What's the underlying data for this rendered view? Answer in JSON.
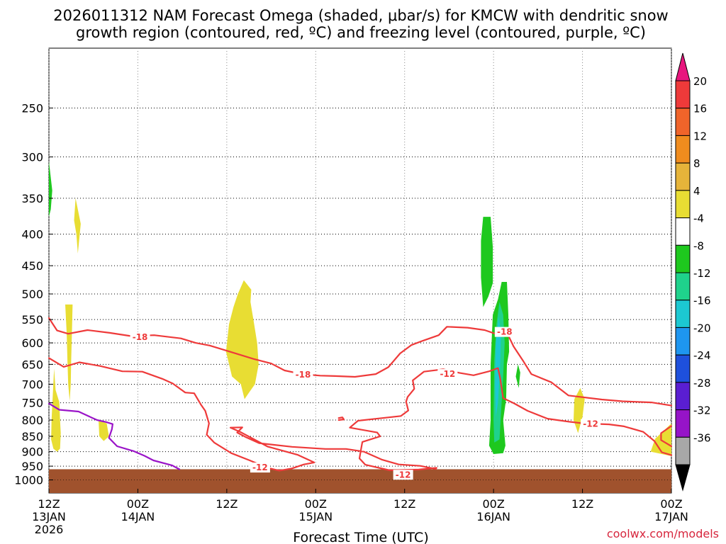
{
  "chart_data": {
    "type": "time-height cross section",
    "title_line1": "2026011312 NAM Forecast Omega (shaded, μbar/s) for KMCW with dendritic snow",
    "title_line2": "growth region (contoured, red, ºC) and freezing level (contoured, purple, ºC)",
    "xlabel": "Forecast Time (UTC)",
    "credit": "coolwx.com/models",
    "y_levels_hpa": [
      250,
      300,
      350,
      400,
      450,
      500,
      550,
      600,
      650,
      700,
      750,
      800,
      850,
      900,
      950,
      1000
    ],
    "y_range_hpa": [
      200,
      1050
    ],
    "x_range_hours": [
      0,
      84
    ],
    "x_ticks": [
      {
        "hour": 0,
        "line1": "12Z",
        "line2": "13JAN",
        "line3": "2026"
      },
      {
        "hour": 12,
        "line1": "00Z",
        "line2": "14JAN",
        "line3": ""
      },
      {
        "hour": 24,
        "line1": "12Z",
        "line2": "",
        "line3": ""
      },
      {
        "hour": 36,
        "line1": "00Z",
        "line2": "15JAN",
        "line3": ""
      },
      {
        "hour": 48,
        "line1": "12Z",
        "line2": "",
        "line3": ""
      },
      {
        "hour": 60,
        "line1": "00Z",
        "line2": "16JAN",
        "line3": ""
      },
      {
        "hour": 72,
        "line1": "12Z",
        "line2": "",
        "line3": ""
      },
      {
        "hour": 84,
        "line1": "00Z",
        "line2": "17JAN",
        "line3": ""
      }
    ],
    "colorbar": {
      "labels": [
        "20",
        "16",
        "12",
        "8",
        "4",
        "-4",
        "-8",
        "-12",
        "-16",
        "-20",
        "-24",
        "-28",
        "-32",
        "-36"
      ],
      "colors": [
        "#e8177e",
        "#ee3a3a",
        "#f0642a",
        "#f08c1e",
        "#e6b43a",
        "#e8dd33",
        "#ffffff",
        "#1ec81e",
        "#1fd28c",
        "#1cc8d2",
        "#1e96f0",
        "#1e50dc",
        "#5a1ed2",
        "#9614c8",
        "#a8a8a8",
        "#000000"
      ]
    },
    "contour_labels": [
      {
        "text": "-18",
        "hour": 12.3,
        "hpa": 587
      },
      {
        "text": "-18",
        "hour": 34.3,
        "hpa": 676
      },
      {
        "text": "-12",
        "hour": 28.5,
        "hpa": 955
      },
      {
        "text": "-12",
        "hour": 53.8,
        "hpa": 674
      },
      {
        "text": "-12",
        "hour": 47.8,
        "hpa": 981
      },
      {
        "text": "-18",
        "hour": 61.5,
        "hpa": 576
      },
      {
        "text": "-12",
        "hour": 73.1,
        "hpa": 812
      }
    ],
    "omega_areas": [
      {
        "color": "#e8dd33",
        "pts": [
          [
            0.7,
            660
          ],
          [
            0.9,
            715
          ],
          [
            1.4,
            748
          ],
          [
            1.5,
            800
          ],
          [
            1.6,
            840
          ],
          [
            1.5,
            890
          ],
          [
            1.1,
            900
          ],
          [
            0.6,
            890
          ],
          [
            0.3,
            860
          ],
          [
            0.35,
            800
          ]
        ]
      },
      {
        "color": "#e8dd33",
        "pts": [
          [
            3.6,
            350
          ],
          [
            4.3,
            385
          ],
          [
            3.9,
            430
          ],
          [
            3.7,
            400
          ],
          [
            3.4,
            380
          ]
        ]
      },
      {
        "color": "#e8dd33",
        "pts": [
          [
            2.2,
            520
          ],
          [
            3.2,
            520
          ],
          [
            3.1,
            580
          ],
          [
            3.0,
            640
          ],
          [
            2.95,
            700
          ],
          [
            2.8,
            745
          ],
          [
            2.6,
            700
          ],
          [
            2.5,
            640
          ],
          [
            2.4,
            580
          ]
        ]
      },
      {
        "color": "#e8dd33",
        "pts": [
          [
            6.7,
            800
          ],
          [
            7.8,
            810
          ],
          [
            8.1,
            850
          ],
          [
            7.4,
            865
          ],
          [
            6.8,
            850
          ]
        ]
      },
      {
        "color": "#e8dd33",
        "pts": [
          [
            26.3,
            475
          ],
          [
            27.3,
            492
          ],
          [
            27.2,
            515
          ],
          [
            27.7,
            560
          ],
          [
            28.1,
            600
          ],
          [
            28.3,
            650
          ],
          [
            27.8,
            700
          ],
          [
            26.9,
            725
          ],
          [
            26.4,
            740
          ],
          [
            25.9,
            700
          ],
          [
            24.7,
            680
          ],
          [
            23.9,
            620
          ],
          [
            24.3,
            560
          ],
          [
            24.9,
            525
          ],
          [
            25.5,
            500
          ]
        ]
      },
      {
        "color": "#e8dd33",
        "pts": [
          [
            71.7,
            710
          ],
          [
            72.3,
            740
          ],
          [
            72.0,
            790
          ],
          [
            71.4,
            840
          ],
          [
            70.8,
            800
          ],
          [
            70.9,
            740
          ]
        ]
      },
      {
        "color": "#e8dd33",
        "pts": [
          [
            84,
            810
          ],
          [
            84,
            915
          ],
          [
            81.2,
            900
          ],
          [
            81.8,
            858
          ]
        ]
      },
      {
        "color": "#1ec81e",
        "pts": [
          [
            0,
            305
          ],
          [
            0.45,
            340
          ],
          [
            0.25,
            365
          ],
          [
            0,
            375
          ]
        ]
      },
      {
        "color": "#1ec81e",
        "pts": [
          [
            58.6,
            375
          ],
          [
            59.6,
            375
          ],
          [
            59.9,
            420
          ],
          [
            59.9,
            480
          ],
          [
            59.3,
            505
          ],
          [
            58.6,
            525
          ],
          [
            58.3,
            470
          ],
          [
            58.3,
            410
          ]
        ]
      },
      {
        "color": "#1ec81e",
        "pts": [
          [
            61.1,
            478
          ],
          [
            61.8,
            478
          ],
          [
            62.0,
            540
          ],
          [
            62.1,
            620
          ],
          [
            61.8,
            650
          ],
          [
            61.7,
            740
          ],
          [
            61.3,
            800
          ],
          [
            61.6,
            880
          ],
          [
            61.3,
            905
          ],
          [
            60.0,
            908
          ],
          [
            59.4,
            880
          ],
          [
            59.6,
            800
          ],
          [
            59.6,
            650
          ],
          [
            59.9,
            540
          ],
          [
            60.6,
            510
          ]
        ]
      },
      {
        "color": "#1ec81e",
        "pts": [
          [
            63.3,
            650
          ],
          [
            63.6,
            670
          ],
          [
            63.4,
            710
          ],
          [
            63.0,
            680
          ]
        ]
      },
      {
        "color": "#1fd28c",
        "pts": [
          [
            60.8,
            515
          ],
          [
            61.3,
            540
          ],
          [
            61.5,
            600
          ],
          [
            61.3,
            680
          ],
          [
            61.0,
            780
          ],
          [
            60.8,
            860
          ],
          [
            60.1,
            870
          ],
          [
            60.0,
            800
          ],
          [
            60.1,
            640
          ],
          [
            60.4,
            560
          ]
        ]
      },
      {
        "color": "#1cc8d2",
        "pts": [
          [
            60.7,
            545
          ],
          [
            61.0,
            580
          ],
          [
            60.9,
            650
          ],
          [
            60.6,
            750
          ],
          [
            60.3,
            790
          ],
          [
            60.2,
            700
          ],
          [
            60.3,
            600
          ]
        ]
      }
    ],
    "contours": [
      {
        "color": "#ee3a3a",
        "pts": [
          [
            0,
            547
          ],
          [
            1.1,
            573
          ],
          [
            2.6,
            580
          ],
          [
            5.2,
            572
          ],
          [
            8.2,
            578
          ],
          [
            11.1,
            585
          ],
          [
            14.2,
            583
          ],
          [
            17.8,
            590
          ],
          [
            19.8,
            600
          ],
          [
            21.7,
            606
          ],
          [
            24.8,
            622
          ],
          [
            27.6,
            637
          ],
          [
            30.0,
            648
          ],
          [
            31.8,
            665
          ],
          [
            34.1,
            674
          ],
          [
            36.6,
            678
          ],
          [
            38.6,
            679
          ],
          [
            41.3,
            681
          ],
          [
            44.1,
            674
          ],
          [
            45.8,
            657
          ],
          [
            47.4,
            624
          ],
          [
            48.9,
            605
          ],
          [
            50.5,
            595
          ],
          [
            52.6,
            583
          ],
          [
            53.7,
            565
          ],
          [
            56.5,
            567
          ],
          [
            58.8,
            572
          ],
          [
            60.8,
            583
          ],
          [
            61.7,
            574
          ],
          [
            62.7,
            608
          ],
          [
            64.0,
            642
          ],
          [
            65.1,
            674
          ],
          [
            67.8,
            695
          ],
          [
            70.1,
            730
          ],
          [
            74.6,
            741
          ],
          [
            77.4,
            746
          ],
          [
            81.3,
            749
          ],
          [
            84,
            758
          ]
        ]
      },
      {
        "color": "#ee3a3a",
        "pts": [
          [
            0,
            635
          ],
          [
            2.0,
            656
          ],
          [
            4.1,
            645
          ],
          [
            6.9,
            654
          ],
          [
            9.9,
            667
          ],
          [
            12.6,
            668
          ],
          [
            15.3,
            686
          ],
          [
            16.7,
            698
          ],
          [
            18.4,
            722
          ],
          [
            19.6,
            724
          ],
          [
            20.5,
            755
          ],
          [
            21.1,
            773
          ],
          [
            21.6,
            810
          ],
          [
            21.3,
            845
          ],
          [
            22.3,
            870
          ],
          [
            24.6,
            905
          ],
          [
            27.1,
            930
          ],
          [
            29.5,
            956
          ],
          [
            31.1,
            966
          ],
          [
            32.8,
            958
          ],
          [
            34.4,
            944
          ],
          [
            35.8,
            937
          ],
          [
            33.6,
            911
          ],
          [
            29.5,
            883
          ],
          [
            25.8,
            836
          ],
          [
            24.5,
            823
          ],
          [
            26.1,
            822
          ],
          [
            25.4,
            838
          ],
          [
            26.6,
            853
          ],
          [
            28.4,
            872
          ],
          [
            32.8,
            884
          ],
          [
            37.3,
            891
          ],
          [
            40.1,
            891
          ],
          [
            42.5,
            900
          ],
          [
            44.9,
            927
          ],
          [
            47.2,
            944
          ],
          [
            50.1,
            949
          ],
          [
            52.2,
            960
          ],
          [
            52.3,
            956
          ],
          [
            49.9,
            962
          ],
          [
            46.0,
            965
          ],
          [
            42.7,
            945
          ],
          [
            41.9,
            923
          ],
          [
            42.1,
            895
          ],
          [
            42.3,
            868
          ],
          [
            44.7,
            850
          ],
          [
            44.3,
            838
          ],
          [
            40.6,
            823
          ],
          [
            41.7,
            802
          ],
          [
            45.0,
            794
          ],
          [
            47.5,
            788
          ],
          [
            48.5,
            772
          ],
          [
            48.2,
            747
          ],
          [
            48.4,
            734
          ],
          [
            49.3,
            712
          ],
          [
            49.1,
            690
          ],
          [
            50.6,
            668
          ],
          [
            53.2,
            662
          ],
          [
            55.4,
            671
          ],
          [
            57.3,
            677
          ],
          [
            59.4,
            667
          ],
          [
            60.6,
            659
          ],
          [
            60.9,
            685
          ],
          [
            61.3,
            737
          ],
          [
            62.8,
            752
          ],
          [
            64.6,
            773
          ],
          [
            67.3,
            796
          ],
          [
            70.2,
            805
          ],
          [
            72.1,
            810
          ],
          [
            75.6,
            813
          ],
          [
            77.6,
            819
          ],
          [
            80.2,
            836
          ],
          [
            81.7,
            865
          ],
          [
            82.7,
            902
          ],
          [
            84,
            912
          ]
        ]
      },
      {
        "color": "#ee3a3a",
        "pts": [
          [
            84,
            818
          ],
          [
            82.6,
            840
          ],
          [
            82.6,
            862
          ],
          [
            84,
            882
          ]
        ]
      },
      {
        "color": "#ee3a3a",
        "pts": [
          [
            39.1,
            794
          ],
          [
            39.6,
            792
          ],
          [
            39.8,
            798
          ],
          [
            39.1,
            800
          ]
        ]
      },
      {
        "color": "#9a14c8",
        "pts": [
          [
            0,
            752
          ],
          [
            1.4,
            770
          ],
          [
            4.0,
            775
          ],
          [
            5.4,
            789
          ],
          [
            6.5,
            800
          ],
          [
            7.7,
            806
          ],
          [
            8.6,
            812
          ],
          [
            8.5,
            828
          ],
          [
            8.1,
            855
          ],
          [
            9.2,
            882
          ],
          [
            11.4,
            898
          ],
          [
            12.9,
            914
          ],
          [
            14.1,
            930
          ],
          [
            16.6,
            947
          ],
          [
            17.6,
            961
          ]
        ]
      }
    ]
  }
}
